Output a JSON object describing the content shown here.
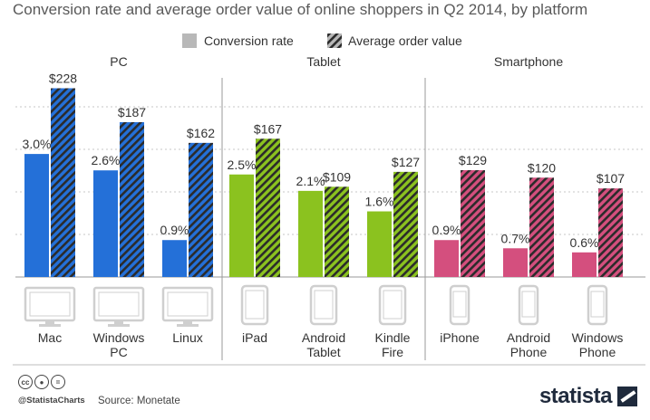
{
  "title": "Conversion rate and average order value of online shoppers in Q2 2014, by platform",
  "footer": {
    "handle": "@StatistaCharts",
    "source": "Source: Monetate",
    "brand": "statista",
    "cc_icons": [
      "cc-icon",
      "by-icon",
      "nd-icon"
    ]
  },
  "chart_data": {
    "type": "bar",
    "legend": [
      "Conversion rate",
      "Average order value"
    ],
    "legend_placement": "top",
    "groups": [
      {
        "name": "PC",
        "color": "#2470d8",
        "categories": [
          {
            "label": "Mac",
            "icon": "desktop-icon",
            "conversion_label": "3.0%",
            "conversion": 3.0,
            "aov_label": "$228",
            "aov": 228
          },
          {
            "label": "Windows PC",
            "icon": "desktop-icon",
            "conversion_label": "2.6%",
            "conversion": 2.6,
            "aov_label": "$187",
            "aov": 187
          },
          {
            "label": "Linux",
            "icon": "desktop-icon",
            "conversion_label": "0.9%",
            "conversion": 0.9,
            "aov_label": "$162",
            "aov": 162
          }
        ]
      },
      {
        "name": "Tablet",
        "color": "#8bc21f",
        "categories": [
          {
            "label": "iPad",
            "icon": "tablet-icon",
            "conversion_label": "2.5%",
            "conversion": 2.5,
            "aov_label": "$167",
            "aov": 167
          },
          {
            "label": "Android Tablet",
            "icon": "tablet-icon",
            "conversion_label": "2.1%",
            "conversion": 2.1,
            "aov_label": "$109",
            "aov": 109
          },
          {
            "label": "Kindle Fire",
            "icon": "tablet-icon",
            "conversion_label": "1.6%",
            "conversion": 1.6,
            "aov_label": "$127",
            "aov": 127
          }
        ]
      },
      {
        "name": "Smartphone",
        "color": "#d44f7e",
        "categories": [
          {
            "label": "iPhone",
            "icon": "phone-icon",
            "conversion_label": "0.9%",
            "conversion": 0.9,
            "aov_label": "$129",
            "aov": 129
          },
          {
            "label": "Android Phone",
            "icon": "phone-icon",
            "conversion_label": "0.7%",
            "conversion": 0.7,
            "aov_label": "$120",
            "aov": 120
          },
          {
            "label": "Windows Phone",
            "icon": "phone-icon",
            "conversion_label": "0.6%",
            "conversion": 0.6,
            "aov_label": "$107",
            "aov": 107
          }
        ]
      }
    ],
    "grid": true
  }
}
